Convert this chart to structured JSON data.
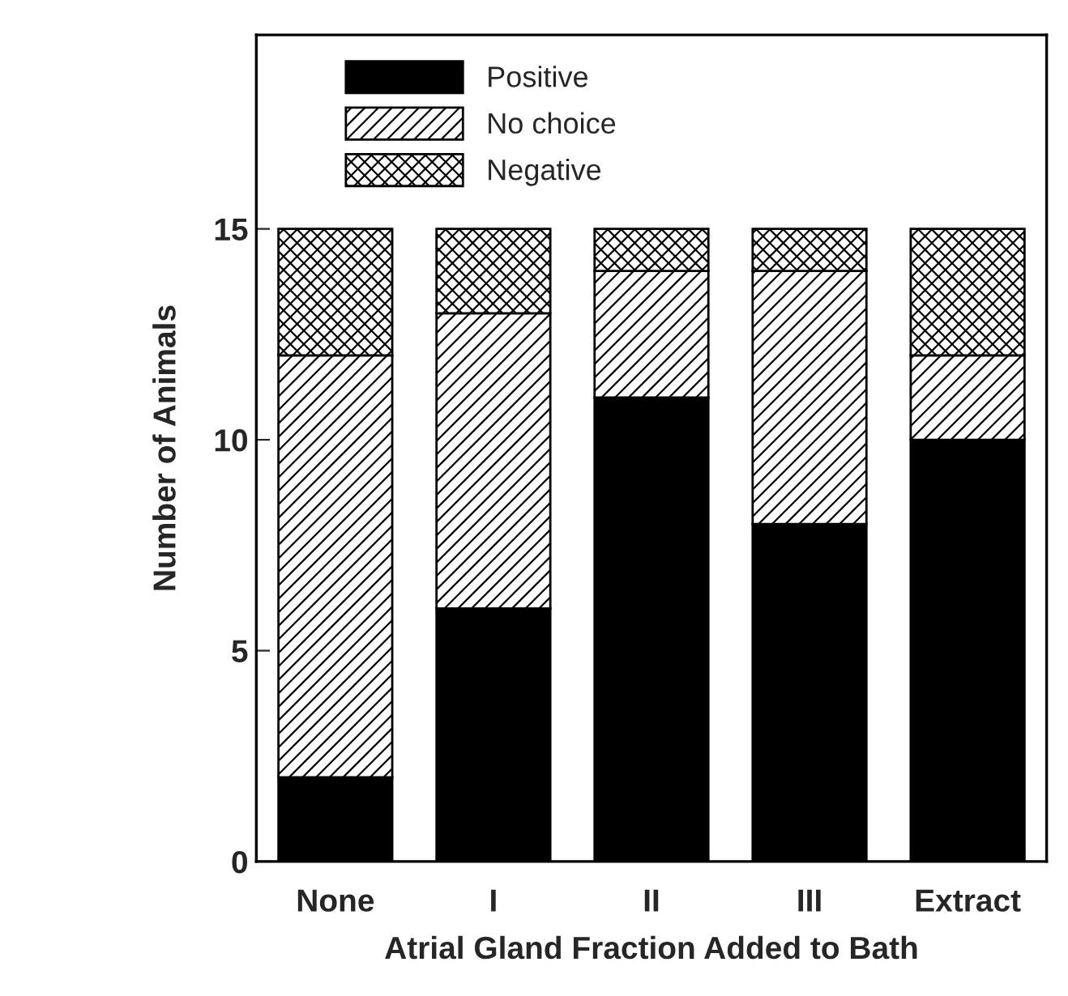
{
  "chart_data": {
    "type": "bar",
    "stacked": true,
    "categories": [
      "None",
      "I",
      "II",
      "III",
      "Extract"
    ],
    "xlabel": "Atrial Gland Fraction Added to Bath",
    "ylabel": "Number of Animals",
    "series": [
      {
        "name": "Positive",
        "color": "#000000",
        "values": [
          2,
          6,
          11,
          8,
          10
        ]
      },
      {
        "name": "No choice",
        "color": "#000000",
        "values": [
          10,
          7,
          3,
          6,
          2
        ]
      },
      {
        "name": "Negative",
        "color": "#000000",
        "values": [
          3,
          2,
          1,
          1,
          3
        ]
      }
    ],
    "ylim": [
      0,
      19.6
    ],
    "yticks": [
      0,
      5,
      10,
      15
    ],
    "legend": "top left",
    "grid": false
  }
}
